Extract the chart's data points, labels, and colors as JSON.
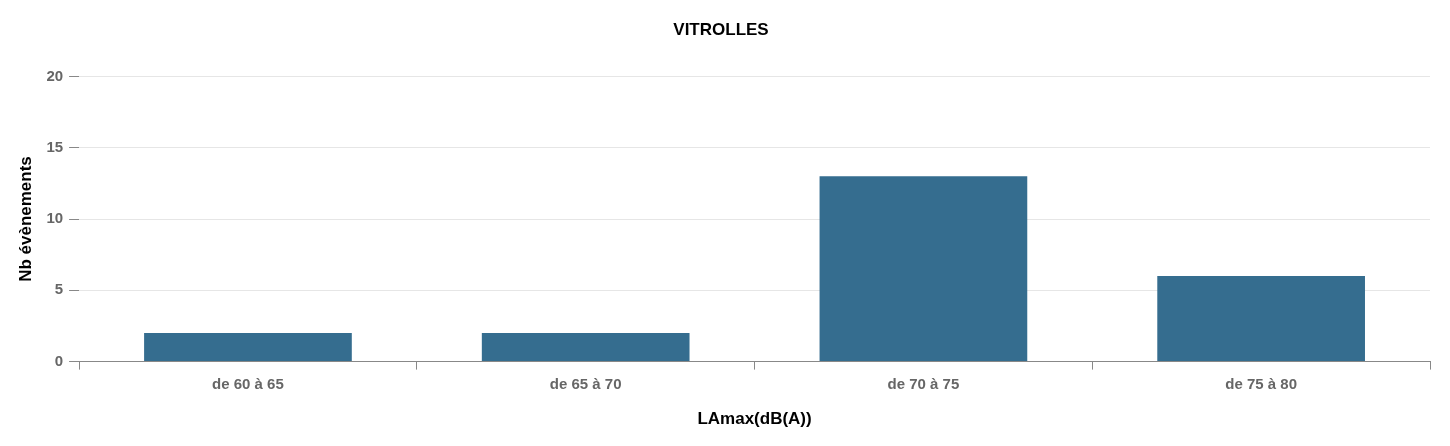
{
  "chart_data": {
    "type": "bar",
    "title": "VITROLLES",
    "xlabel": "LAmax(dB(A))",
    "ylabel": "Nb évènements",
    "categories": [
      "de 60 à 65",
      "de 65 à 70",
      "de 70 à 75",
      "de 75 à 80"
    ],
    "values": [
      2,
      2,
      13,
      6
    ],
    "color": "#356d8f",
    "ylim": [
      0,
      20
    ],
    "yticks": [
      0,
      5,
      10,
      15,
      20
    ],
    "grid": "y",
    "legend": false
  }
}
